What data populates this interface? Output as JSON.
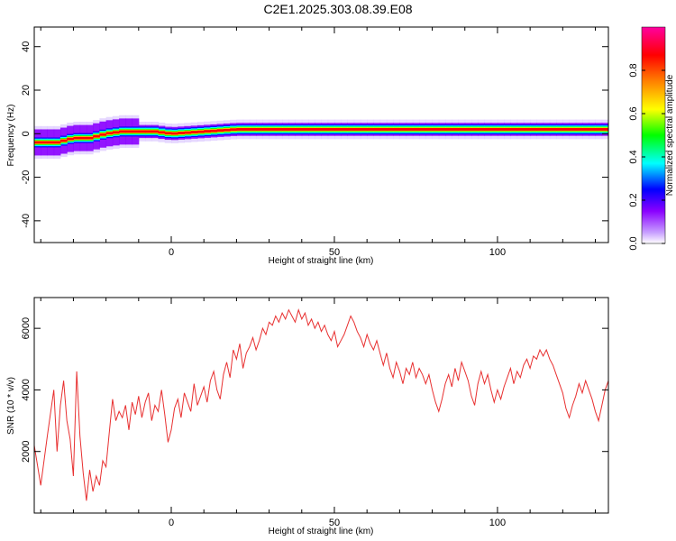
{
  "title": "C2E1.2025.303.08.39.E08",
  "chart_data": [
    {
      "type": "heatmap",
      "xlabel": "Height of straight line (km)",
      "ylabel": "Frequency (Hz)",
      "xlim": [
        -42,
        134
      ],
      "ylim": [
        -50,
        49
      ],
      "x_ticks": [
        0,
        50,
        100
      ],
      "y_ticks": [
        -40,
        -20,
        0,
        20,
        40
      ],
      "colorbar": {
        "label": "Normalized spectral amplitude",
        "range": [
          0.0,
          1.0
        ],
        "ticks": [
          0.0,
          0.2,
          0.4,
          0.6,
          0.8
        ],
        "colors": [
          "#ffffff",
          "#8a00ff",
          "#0000ff",
          "#00ffff",
          "#00ff00",
          "#ffff00",
          "#ff8000",
          "#ff0000",
          "#ff00a0"
        ]
      },
      "ridge": [
        {
          "x": -42,
          "freq": -4
        },
        {
          "x": -35,
          "freq": -4
        },
        {
          "x": -30,
          "freq": -2
        },
        {
          "x": -25,
          "freq": -2
        },
        {
          "x": -20,
          "freq": 0
        },
        {
          "x": -15,
          "freq": 1
        },
        {
          "x": -5,
          "freq": 1
        },
        {
          "x": 0,
          "freq": 0
        },
        {
          "x": 10,
          "freq": 1
        },
        {
          "x": 20,
          "freq": 2
        },
        {
          "x": 60,
          "freq": 2
        },
        {
          "x": 100,
          "freq": 2
        },
        {
          "x": 134,
          "freq": 2
        }
      ]
    },
    {
      "type": "line",
      "xlabel": "Height of straight line (km)",
      "ylabel": "SNR (10 * v/v)",
      "xlim": [
        -42,
        134
      ],
      "ylim": [
        0,
        7000
      ],
      "x_ticks": [
        0,
        50,
        100
      ],
      "y_ticks": [
        2000,
        4000,
        6000
      ],
      "color": "#e83030",
      "series": [
        {
          "values": [
            [
              -42,
              2200
            ],
            [
              -40,
              900
            ],
            [
              -38,
              2500
            ],
            [
              -36,
              4000
            ],
            [
              -35,
              2000
            ],
            [
              -34,
              3500
            ],
            [
              -33,
              4300
            ],
            [
              -32,
              3000
            ],
            [
              -31,
              2400
            ],
            [
              -30,
              1200
            ],
            [
              -29,
              4600
            ],
            [
              -28,
              2500
            ],
            [
              -27,
              1300
            ],
            [
              -26,
              400
            ],
            [
              -25,
              1400
            ],
            [
              -24,
              700
            ],
            [
              -23,
              1200
            ],
            [
              -22,
              900
            ],
            [
              -21,
              1700
            ],
            [
              -20,
              1500
            ],
            [
              -19,
              2600
            ],
            [
              -18,
              3700
            ],
            [
              -17,
              3000
            ],
            [
              -16,
              3300
            ],
            [
              -15,
              3100
            ],
            [
              -14,
              3500
            ],
            [
              -13,
              2700
            ],
            [
              -12,
              3600
            ],
            [
              -11,
              3200
            ],
            [
              -10,
              3800
            ],
            [
              -9,
              3100
            ],
            [
              -8,
              3600
            ],
            [
              -7,
              3900
            ],
            [
              -6,
              3000
            ],
            [
              -5,
              3500
            ],
            [
              -4,
              3300
            ],
            [
              -3,
              4000
            ],
            [
              -2,
              3200
            ],
            [
              -1,
              2300
            ],
            [
              0,
              2700
            ],
            [
              1,
              3400
            ],
            [
              2,
              3700
            ],
            [
              3,
              3100
            ],
            [
              4,
              3900
            ],
            [
              5,
              3600
            ],
            [
              6,
              3300
            ],
            [
              7,
              4200
            ],
            [
              8,
              3500
            ],
            [
              9,
              3800
            ],
            [
              10,
              4100
            ],
            [
              11,
              3600
            ],
            [
              12,
              4300
            ],
            [
              13,
              4600
            ],
            [
              14,
              4000
            ],
            [
              15,
              3700
            ],
            [
              16,
              4500
            ],
            [
              17,
              4900
            ],
            [
              18,
              4400
            ],
            [
              19,
              5300
            ],
            [
              20,
              5000
            ],
            [
              21,
              5500
            ],
            [
              22,
              4700
            ],
            [
              23,
              5200
            ],
            [
              24,
              5400
            ],
            [
              25,
              5700
            ],
            [
              26,
              5300
            ],
            [
              27,
              5600
            ],
            [
              28,
              6000
            ],
            [
              29,
              5800
            ],
            [
              30,
              6200
            ],
            [
              31,
              6100
            ],
            [
              32,
              6400
            ],
            [
              33,
              6200
            ],
            [
              34,
              6500
            ],
            [
              35,
              6300
            ],
            [
              36,
              6600
            ],
            [
              37,
              6400
            ],
            [
              38,
              6200
            ],
            [
              39,
              6600
            ],
            [
              40,
              6300
            ],
            [
              41,
              6500
            ],
            [
              42,
              6100
            ],
            [
              43,
              6300
            ],
            [
              44,
              6000
            ],
            [
              45,
              6200
            ],
            [
              46,
              5900
            ],
            [
              47,
              6100
            ],
            [
              48,
              5800
            ],
            [
              49,
              5600
            ],
            [
              50,
              5900
            ],
            [
              51,
              5400
            ],
            [
              52,
              5600
            ],
            [
              53,
              5800
            ],
            [
              54,
              6100
            ],
            [
              55,
              6400
            ],
            [
              56,
              6200
            ],
            [
              57,
              5900
            ],
            [
              58,
              5700
            ],
            [
              59,
              5400
            ],
            [
              60,
              5800
            ],
            [
              61,
              5500
            ],
            [
              62,
              5300
            ],
            [
              63,
              5600
            ],
            [
              64,
              5200
            ],
            [
              65,
              4800
            ],
            [
              66,
              5200
            ],
            [
              67,
              4700
            ],
            [
              68,
              4400
            ],
            [
              69,
              4900
            ],
            [
              70,
              4600
            ],
            [
              71,
              4200
            ],
            [
              72,
              4700
            ],
            [
              73,
              4500
            ],
            [
              74,
              4900
            ],
            [
              75,
              4400
            ],
            [
              76,
              4700
            ],
            [
              77,
              4500
            ],
            [
              78,
              4200
            ],
            [
              79,
              4500
            ],
            [
              80,
              4000
            ],
            [
              81,
              3600
            ],
            [
              82,
              3300
            ],
            [
              83,
              3700
            ],
            [
              84,
              4200
            ],
            [
              85,
              4500
            ],
            [
              86,
              4100
            ],
            [
              87,
              4700
            ],
            [
              88,
              4300
            ],
            [
              89,
              4900
            ],
            [
              90,
              4600
            ],
            [
              91,
              4300
            ],
            [
              92,
              3800
            ],
            [
              93,
              3500
            ],
            [
              94,
              4200
            ],
            [
              95,
              4600
            ],
            [
              96,
              4200
            ],
            [
              97,
              4500
            ],
            [
              98,
              4000
            ],
            [
              99,
              3600
            ],
            [
              100,
              4000
            ],
            [
              101,
              3700
            ],
            [
              102,
              4100
            ],
            [
              103,
              4400
            ],
            [
              104,
              4700
            ],
            [
              105,
              4200
            ],
            [
              106,
              4600
            ],
            [
              107,
              4400
            ],
            [
              108,
              4800
            ],
            [
              109,
              5000
            ],
            [
              110,
              4700
            ],
            [
              111,
              5100
            ],
            [
              112,
              5000
            ],
            [
              113,
              5300
            ],
            [
              114,
              5100
            ],
            [
              115,
              5300
            ],
            [
              116,
              5000
            ],
            [
              117,
              4800
            ],
            [
              118,
              4500
            ],
            [
              119,
              4200
            ],
            [
              120,
              3900
            ],
            [
              121,
              3400
            ],
            [
              122,
              3100
            ],
            [
              123,
              3500
            ],
            [
              124,
              3800
            ],
            [
              125,
              4200
            ],
            [
              126,
              3900
            ],
            [
              127,
              4300
            ],
            [
              128,
              4000
            ],
            [
              129,
              3700
            ],
            [
              130,
              3300
            ],
            [
              131,
              3000
            ],
            [
              132,
              3500
            ],
            [
              133,
              4000
            ],
            [
              134,
              4300
            ]
          ]
        }
      ]
    }
  ]
}
